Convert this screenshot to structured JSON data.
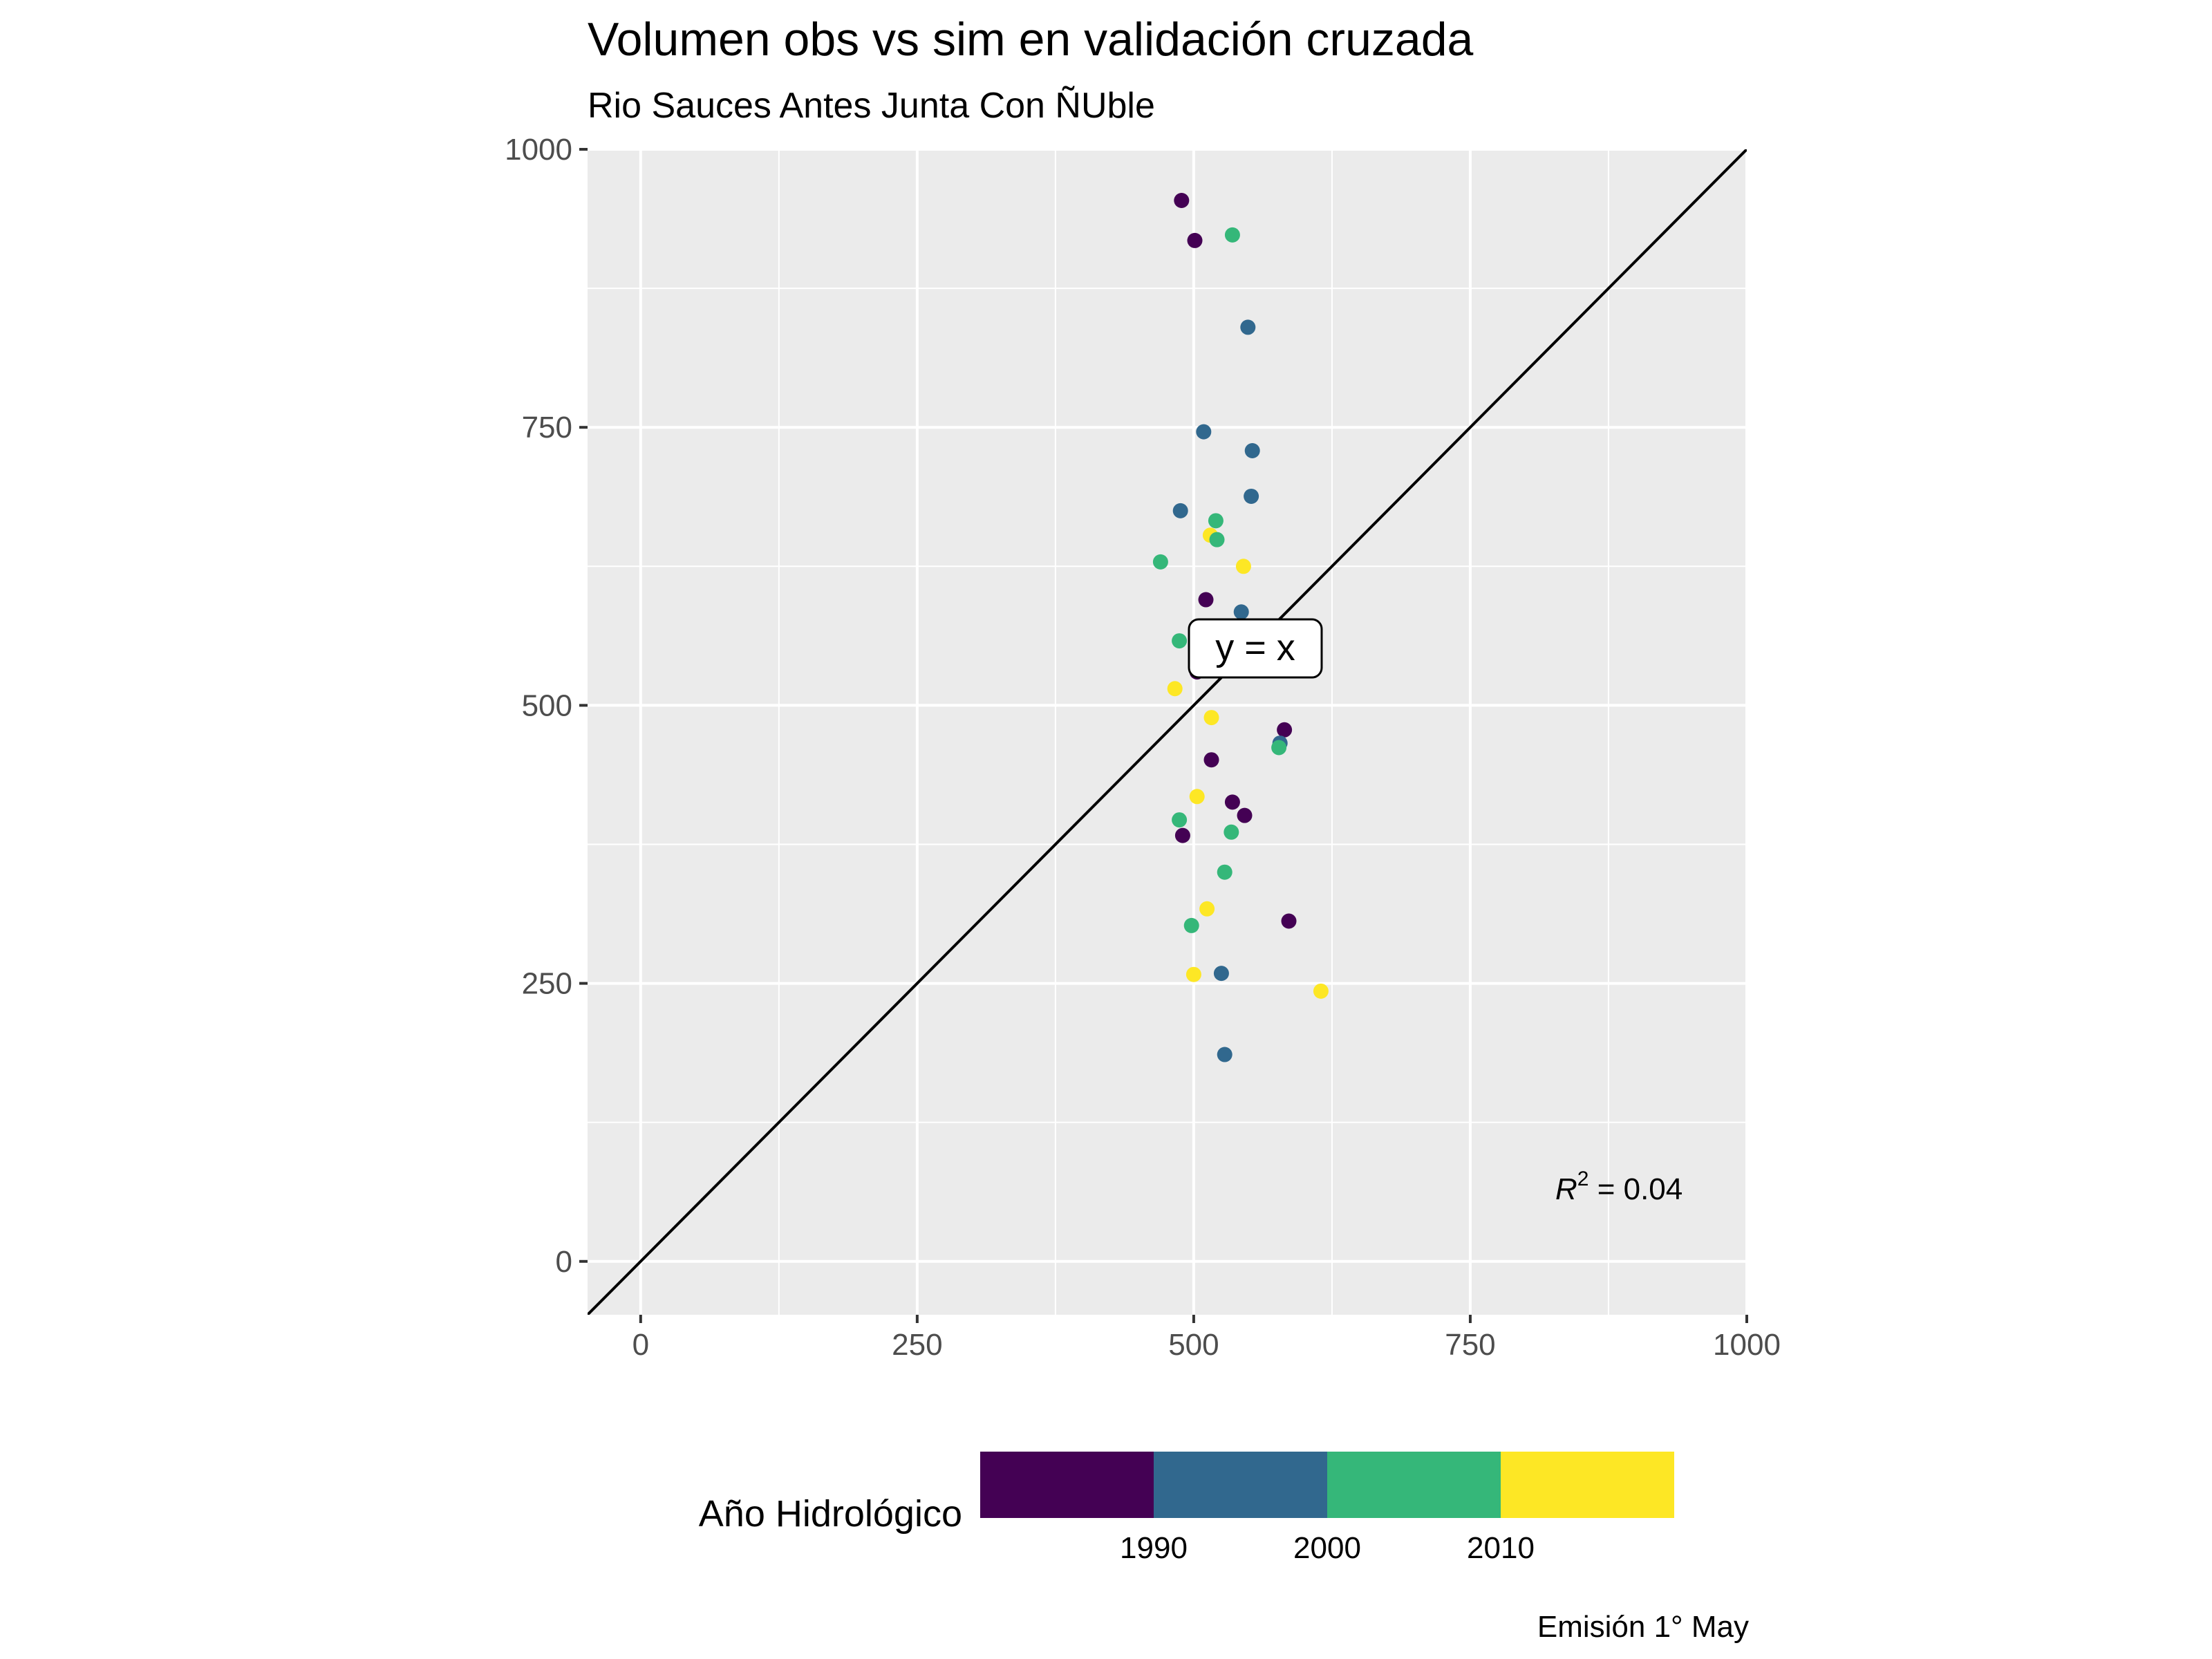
{
  "title": "Volumen obs vs sim en validación cruzada",
  "subtitle": "Rio Sauces Antes Junta Con ÑUble",
  "caption": "Emisión 1° May",
  "annotations": {
    "identity_label": "y = x",
    "r2_symbol": "R",
    "r2_exponent": "2",
    "r2_value": " = 0.04"
  },
  "legend": {
    "title": "Año Hidrológico",
    "bins": [
      {
        "color": "#440154"
      },
      {
        "color": "#31688E"
      },
      {
        "color": "#35B779"
      },
      {
        "color": "#FDE725"
      }
    ],
    "break_labels": [
      "1990",
      "2000",
      "2010"
    ]
  },
  "colors": {
    "panel_background": "#EBEBEB",
    "grid": "#FFFFFF",
    "identity_line": "#000000"
  },
  "chart_data": {
    "type": "scatter",
    "title": "Volumen obs vs sim en validación cruzada",
    "subtitle": "Rio Sauces Antes Junta Con ÑUble",
    "xlabel": "",
    "ylabel": "",
    "xlim": [
      -48,
      1000
    ],
    "ylim": [
      -48,
      1000
    ],
    "x_ticks": [
      0,
      250,
      500,
      750,
      1000
    ],
    "y_ticks": [
      0,
      250,
      500,
      750,
      1000
    ],
    "x_tick_labels": [
      "0",
      "250",
      "500",
      "750",
      "1000"
    ],
    "y_tick_labels": [
      "0",
      "250",
      "500",
      "750",
      "1000"
    ],
    "grid": true,
    "reference_line": "y = x",
    "r_squared": 0.04,
    "legend_position": "bottom",
    "color_variable": "Año Hidrológico",
    "points": [
      {
        "x": 489,
        "y": 954,
        "c": "#440154"
      },
      {
        "x": 501,
        "y": 918,
        "c": "#440154"
      },
      {
        "x": 535,
        "y": 923,
        "c": "#35B779"
      },
      {
        "x": 549,
        "y": 840,
        "c": "#31688E"
      },
      {
        "x": 509,
        "y": 746,
        "c": "#31688E"
      },
      {
        "x": 553,
        "y": 729,
        "c": "#31688E"
      },
      {
        "x": 552,
        "y": 688,
        "c": "#31688E"
      },
      {
        "x": 488,
        "y": 675,
        "c": "#31688E"
      },
      {
        "x": 520,
        "y": 666,
        "c": "#35B779"
      },
      {
        "x": 515,
        "y": 653,
        "c": "#FDE725"
      },
      {
        "x": 521,
        "y": 649,
        "c": "#35B779"
      },
      {
        "x": 470,
        "y": 629,
        "c": "#35B779"
      },
      {
        "x": 545,
        "y": 625,
        "c": "#FDE725"
      },
      {
        "x": 511,
        "y": 595,
        "c": "#440154"
      },
      {
        "x": 543,
        "y": 584,
        "c": "#31688E"
      },
      {
        "x": 487,
        "y": 558,
        "c": "#35B779"
      },
      {
        "x": 503,
        "y": 530,
        "c": "#440154"
      },
      {
        "x": 483,
        "y": 515,
        "c": "#FDE725"
      },
      {
        "x": 582,
        "y": 478,
        "c": "#440154"
      },
      {
        "x": 578,
        "y": 466,
        "c": "#31688E"
      },
      {
        "x": 577,
        "y": 462,
        "c": "#35B779"
      },
      {
        "x": 516,
        "y": 489,
        "c": "#FDE725"
      },
      {
        "x": 516,
        "y": 451,
        "c": "#440154"
      },
      {
        "x": 503,
        "y": 418,
        "c": "#FDE725"
      },
      {
        "x": 535,
        "y": 413,
        "c": "#440154"
      },
      {
        "x": 546,
        "y": 401,
        "c": "#440154"
      },
      {
        "x": 487,
        "y": 397,
        "c": "#35B779"
      },
      {
        "x": 534,
        "y": 386,
        "c": "#35B779"
      },
      {
        "x": 490,
        "y": 383,
        "c": "#440154"
      },
      {
        "x": 528,
        "y": 350,
        "c": "#35B779"
      },
      {
        "x": 512,
        "y": 317,
        "c": "#FDE725"
      },
      {
        "x": 586,
        "y": 306,
        "c": "#440154"
      },
      {
        "x": 498,
        "y": 302,
        "c": "#35B779"
      },
      {
        "x": 500,
        "y": 258,
        "c": "#FDE725"
      },
      {
        "x": 525,
        "y": 259,
        "c": "#31688E"
      },
      {
        "x": 615,
        "y": 243,
        "c": "#FDE725"
      },
      {
        "x": 528,
        "y": 186,
        "c": "#31688E"
      }
    ]
  }
}
